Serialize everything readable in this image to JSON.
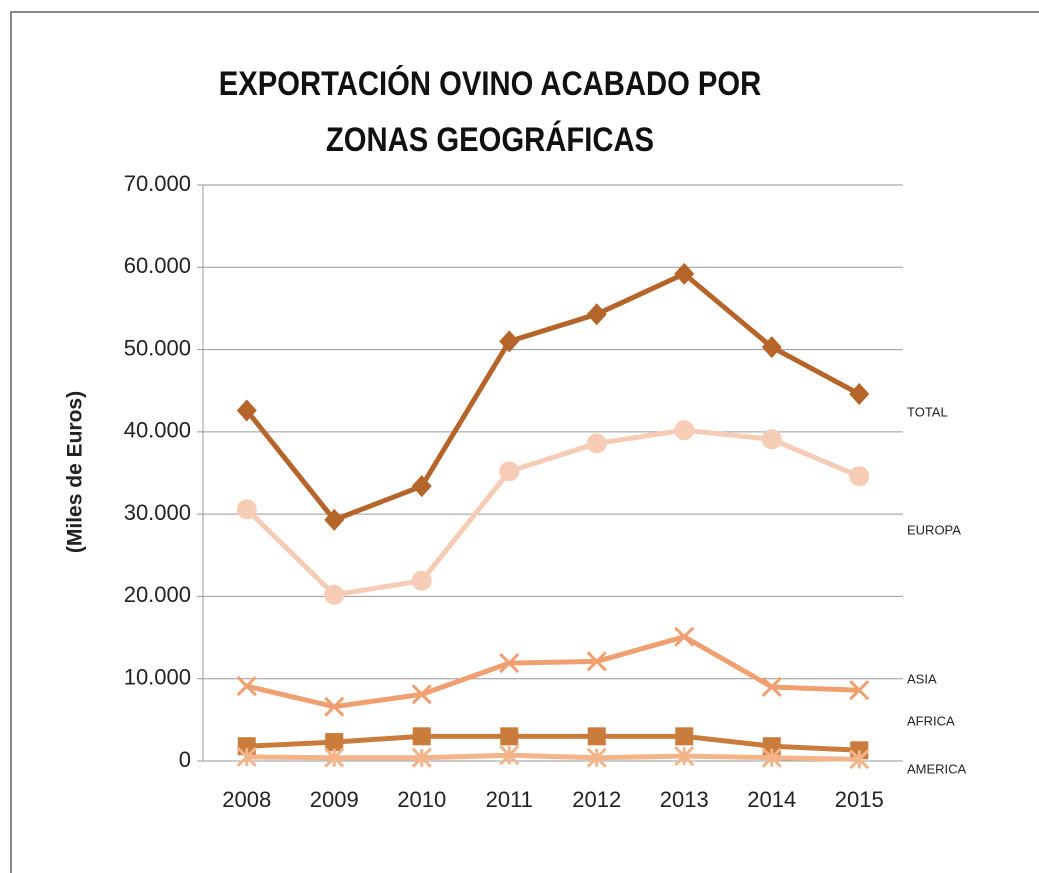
{
  "chart_data": {
    "type": "line",
    "title": "EXPORTACIÓN OVINO ACABADO POR ZONAS GEOGRÁFICAS",
    "y_label": "(Miles de Euros)",
    "categories": [
      "2008",
      "2009",
      "2010",
      "2011",
      "2012",
      "2013",
      "2014",
      "2015"
    ],
    "series": [
      {
        "name": "TOTAL",
        "color": "#b5652a",
        "marker": "diamond",
        "values": [
          42600,
          29300,
          33400,
          51000,
          54300,
          59200,
          50300,
          44600
        ]
      },
      {
        "name": "EUROPA",
        "color": "#f7ccb6",
        "marker": "circle",
        "values": [
          30600,
          20200,
          21900,
          35200,
          38600,
          40200,
          39100,
          34600
        ]
      },
      {
        "name": "ASIA",
        "color": "#f0a070",
        "marker": "x",
        "values": [
          9100,
          6600,
          8100,
          11900,
          12100,
          15100,
          9000,
          8600
        ]
      },
      {
        "name": "AFRICA",
        "color": "#c97c3c",
        "marker": "square",
        "values": [
          1800,
          2300,
          3000,
          3000,
          3000,
          3000,
          1800,
          1300
        ]
      },
      {
        "name": "AMERICA",
        "color": "#f4b48a",
        "marker": "star",
        "values": [
          500,
          400,
          400,
          700,
          400,
          600,
          400,
          200
        ]
      }
    ],
    "ylim": [
      0,
      70000
    ],
    "yticks": [
      0,
      {
        "value": 10000,
        "label": "10.000"
      },
      {
        "value": 20000,
        "label": "20.000"
      },
      {
        "value": 30000,
        "label": "30.000"
      },
      {
        "value": 40000,
        "label": "40.000"
      },
      {
        "value": 50000,
        "label": "50.000"
      },
      {
        "value": 60000,
        "label": "60.000"
      },
      {
        "value": 70000,
        "label": "70.000"
      }
    ],
    "grid": true
  }
}
